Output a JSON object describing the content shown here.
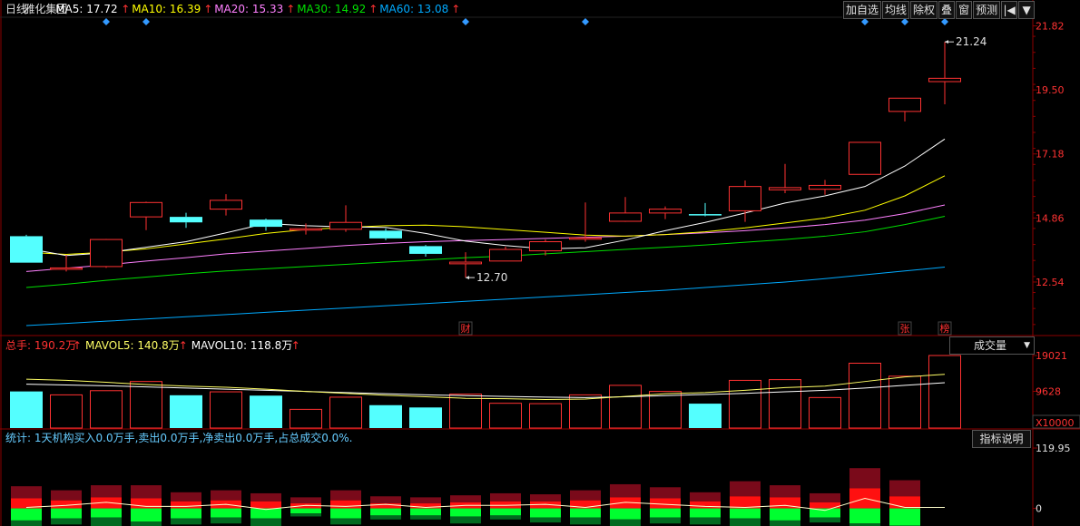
{
  "colors": {
    "up": "#ff3232",
    "down": "#54ffff",
    "ma5": "#ffffff",
    "ma10": "#ffff00",
    "ma20": "#ff80ff",
    "ma30": "#00e000",
    "ma60": "#00aaff",
    "grid": "#8b0000",
    "axis_text": "#ff3232",
    "label_text": "#e0e0e0",
    "diamond": "#3399ff"
  },
  "header": {
    "period": "日线",
    "stock_name": "雅化集团",
    "ma_legend": [
      {
        "label": "MA5: 17.72",
        "color": "#ffffff"
      },
      {
        "label": "MA10: 16.39",
        "color": "#ffff00"
      },
      {
        "label": "MA20: 15.33",
        "color": "#ff80ff"
      },
      {
        "label": "MA30: 14.92",
        "color": "#00e000"
      },
      {
        "label": "MA60: 13.08",
        "color": "#00aaff"
      }
    ],
    "arrow": "↑"
  },
  "toolbar": {
    "items": [
      "加自选",
      "均线",
      "除权",
      "叠",
      "窗",
      "预测"
    ],
    "nav_icon": "|◀",
    "menu_icon": "▼"
  },
  "volume_panel": {
    "legend": [
      {
        "label": "总手: 190.2万",
        "color": "#ff3232"
      },
      {
        "label": "MAVOL5: 140.8万",
        "color": "#ffff66"
      },
      {
        "label": "MAVOL10: 118.8万",
        "color": "#ffffff"
      }
    ],
    "dropdown_label": "成交量",
    "dropdown_icon": "▼",
    "unit_label": "X10000"
  },
  "indicator_panel": {
    "stats_text": "统计: 1天机构买入0.0万手,卖出0.0万手,净卖出0.0万手,占总成交0.0%.",
    "button_label": "指标说明"
  },
  "chart_data": [
    {
      "type": "candlestick",
      "y_ticks": [
        "21.82",
        "19.50",
        "17.18",
        "14.86",
        "12.54"
      ],
      "ylim": [
        10.6,
        22.1
      ],
      "candles": [
        {
          "o": 14.2,
          "c": 13.24,
          "h": 14.25,
          "l": 13.24
        },
        {
          "o": 13.0,
          "c": 13.05,
          "h": 13.52,
          "l": 12.92
        },
        {
          "o": 13.1,
          "c": 14.08,
          "h": 14.1,
          "l": 13.05
        },
        {
          "o": 14.9,
          "c": 15.42,
          "h": 15.45,
          "l": 14.42
        },
        {
          "o": 14.9,
          "c": 14.7,
          "h": 15.05,
          "l": 14.5
        },
        {
          "o": 15.18,
          "c": 15.5,
          "h": 15.72,
          "l": 14.95
        },
        {
          "o": 14.8,
          "c": 14.54,
          "h": 14.84,
          "l": 14.4
        },
        {
          "o": 14.42,
          "c": 14.47,
          "h": 14.66,
          "l": 14.26
        },
        {
          "o": 14.45,
          "c": 14.7,
          "h": 15.32,
          "l": 14.36
        },
        {
          "o": 14.4,
          "c": 14.12,
          "h": 14.48,
          "l": 14.06
        },
        {
          "o": 13.84,
          "c": 13.56,
          "h": 13.88,
          "l": 13.46
        },
        {
          "o": 13.2,
          "c": 13.26,
          "h": 13.62,
          "l": 12.7
        },
        {
          "o": 13.3,
          "c": 13.72,
          "h": 13.82,
          "l": 13.3
        },
        {
          "o": 13.67,
          "c": 14.0,
          "h": 14.08,
          "l": 13.5
        },
        {
          "o": 14.1,
          "c": 14.14,
          "h": 15.42,
          "l": 14.0
        },
        {
          "o": 14.74,
          "c": 15.04,
          "h": 15.62,
          "l": 14.72
        },
        {
          "o": 15.04,
          "c": 15.18,
          "h": 15.28,
          "l": 14.82
        },
        {
          "o": 15.0,
          "c": 14.96,
          "h": 15.4,
          "l": 14.92
        },
        {
          "o": 15.12,
          "c": 16.0,
          "h": 16.22,
          "l": 14.72
        },
        {
          "o": 15.88,
          "c": 15.96,
          "h": 16.82,
          "l": 15.76
        },
        {
          "o": 15.9,
          "c": 16.04,
          "h": 16.24,
          "l": 15.7
        },
        {
          "o": 16.44,
          "c": 17.6,
          "h": 17.6,
          "l": 16.44
        },
        {
          "o": 18.72,
          "c": 19.2,
          "h": 19.2,
          "l": 18.36
        },
        {
          "o": 19.8,
          "c": 19.92,
          "h": 21.24,
          "l": 18.98
        }
      ],
      "ma5": [
        13.76,
        13.5,
        13.6,
        13.8,
        14.0,
        14.32,
        14.66,
        14.58,
        14.54,
        14.52,
        14.3,
        14.02,
        13.86,
        13.74,
        13.78,
        14.06,
        14.4,
        14.7,
        15.04,
        15.4,
        15.66,
        16.0,
        16.74,
        17.72
      ],
      "ma10": [
        13.62,
        13.54,
        13.62,
        13.74,
        13.92,
        14.1,
        14.3,
        14.44,
        14.52,
        14.58,
        14.6,
        14.54,
        14.44,
        14.34,
        14.24,
        14.2,
        14.26,
        14.36,
        14.5,
        14.68,
        14.86,
        15.14,
        15.66,
        16.39
      ],
      "ma20": [
        12.92,
        13.04,
        13.16,
        13.3,
        13.42,
        13.56,
        13.66,
        13.76,
        13.86,
        13.94,
        14.0,
        14.04,
        14.08,
        14.12,
        14.16,
        14.2,
        14.26,
        14.32,
        14.4,
        14.5,
        14.62,
        14.78,
        15.02,
        15.33
      ],
      "ma30": [
        12.34,
        12.46,
        12.6,
        12.72,
        12.84,
        12.94,
        13.02,
        13.1,
        13.18,
        13.26,
        13.34,
        13.42,
        13.48,
        13.56,
        13.64,
        13.72,
        13.8,
        13.88,
        13.98,
        14.08,
        14.2,
        14.36,
        14.62,
        14.92
      ],
      "ma60": [
        10.96,
        11.04,
        11.12,
        11.2,
        11.28,
        11.36,
        11.44,
        11.52,
        11.6,
        11.68,
        11.76,
        11.84,
        11.92,
        12.0,
        12.08,
        12.16,
        12.24,
        12.34,
        12.44,
        12.54,
        12.66,
        12.8,
        12.94,
        13.08
      ],
      "annotations": [
        {
          "index": 11,
          "price": 12.7,
          "label": "12.70",
          "side": "low"
        },
        {
          "index": 23,
          "price": 21.24,
          "label": "21.24",
          "side": "high"
        }
      ],
      "event_markers": [
        {
          "index": 11,
          "label": "财"
        },
        {
          "index": 22,
          "label": "张"
        },
        {
          "index": 23,
          "label": "榜"
        }
      ],
      "top_diamonds": [
        2,
        3,
        11,
        14,
        21,
        22,
        23
      ]
    },
    {
      "type": "bar",
      "name": "成交量",
      "y_ticks": [
        "19021",
        "9628"
      ],
      "ylim": [
        0,
        19021
      ],
      "values": [
        9600,
        8700,
        9800,
        12200,
        8600,
        9500,
        8500,
        4900,
        8100,
        6000,
        5400,
        8900,
        6500,
        6400,
        8700,
        11200,
        9600,
        6400,
        12500,
        12700,
        8000,
        17000,
        13600,
        19021
      ],
      "direction": [
        "down",
        "up",
        "up",
        "up",
        "down",
        "up",
        "down",
        "up",
        "up",
        "down",
        "down",
        "up",
        "up",
        "up",
        "up",
        "up",
        "up",
        "down",
        "up",
        "up",
        "up",
        "up",
        "up",
        "up"
      ],
      "mavol5": [
        12800,
        12500,
        12000,
        11400,
        11000,
        10700,
        10200,
        9600,
        9100,
        8600,
        8200,
        7800,
        7700,
        7500,
        7600,
        8300,
        9000,
        9300,
        9900,
        10600,
        11000,
        12200,
        13400,
        14080
      ],
      "mavol10": [
        11500,
        11300,
        11100,
        10800,
        10500,
        10200,
        9900,
        9600,
        9300,
        9000,
        8700,
        8500,
        8300,
        8100,
        8000,
        8200,
        8500,
        8800,
        9100,
        9500,
        9900,
        10500,
        11200,
        11880
      ]
    },
    {
      "type": "bar",
      "name": "资金统计",
      "y_ticks": [
        "119.95",
        "0"
      ],
      "ylim": [
        -35,
        120
      ],
      "bars": [
        {
          "dr": 24,
          "r": 20,
          "g": -24,
          "dg": -14
        },
        {
          "dr": 20,
          "r": 16,
          "g": -20,
          "dg": -12
        },
        {
          "dr": 24,
          "r": 22,
          "g": -18,
          "dg": -20
        },
        {
          "dr": 26,
          "r": 20,
          "g": -26,
          "dg": -24
        },
        {
          "dr": 18,
          "r": 14,
          "g": -20,
          "dg": -12
        },
        {
          "dr": 20,
          "r": 16,
          "g": -18,
          "dg": -12
        },
        {
          "dr": 16,
          "r": 14,
          "g": -20,
          "dg": -16
        },
        {
          "dr": 12,
          "r": 10,
          "g": -10,
          "dg": -6
        },
        {
          "dr": 20,
          "r": 16,
          "g": -20,
          "dg": -12
        },
        {
          "dr": 14,
          "r": 10,
          "g": -14,
          "dg": -8
        },
        {
          "dr": 12,
          "r": 10,
          "g": -14,
          "dg": -8
        },
        {
          "dr": 14,
          "r": 12,
          "g": -16,
          "dg": -14
        },
        {
          "dr": 16,
          "r": 14,
          "g": -14,
          "dg": -8
        },
        {
          "dr": 14,
          "r": 14,
          "g": -18,
          "dg": -10
        },
        {
          "dr": 20,
          "r": 16,
          "g": -18,
          "dg": -14
        },
        {
          "dr": 26,
          "r": 22,
          "g": -22,
          "dg": -16
        },
        {
          "dr": 22,
          "r": 20,
          "g": -18,
          "dg": -12
        },
        {
          "dr": 18,
          "r": 14,
          "g": -18,
          "dg": -14
        },
        {
          "dr": 30,
          "r": 24,
          "g": -20,
          "dg": -20
        },
        {
          "dr": 24,
          "r": 22,
          "g": -24,
          "dg": -18
        },
        {
          "dr": 18,
          "r": 12,
          "g": -18,
          "dg": -10
        },
        {
          "dr": 40,
          "r": 40,
          "g": -30,
          "dg": -34
        },
        {
          "dr": 32,
          "r": 24,
          "g": -34,
          "dg": -28
        },
        {
          "dr": 0,
          "r": 0,
          "g": 0,
          "dg": 0
        }
      ],
      "line": [
        2,
        6,
        12,
        4,
        4,
        8,
        -2,
        6,
        4,
        8,
        2,
        6,
        6,
        8,
        2,
        12,
        8,
        4,
        2,
        6,
        -4,
        20,
        2,
        2
      ]
    }
  ]
}
